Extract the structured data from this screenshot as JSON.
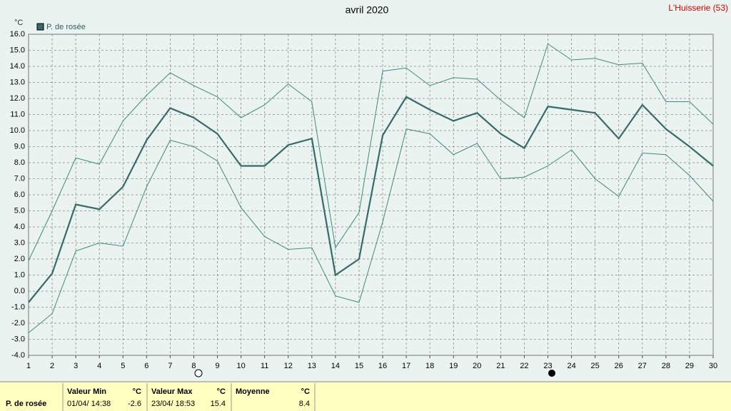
{
  "chart_data": {
    "type": "line",
    "title": "avril 2020",
    "location": "L'Huisserie (53)",
    "unit": "°C",
    "x": [
      1,
      2,
      3,
      4,
      5,
      6,
      7,
      8,
      9,
      10,
      11,
      12,
      13,
      14,
      15,
      16,
      17,
      18,
      19,
      20,
      21,
      22,
      23,
      24,
      25,
      26,
      27,
      28,
      29,
      30
    ],
    "xlim": [
      1,
      30
    ],
    "xticks": [
      1,
      2,
      3,
      4,
      5,
      6,
      7,
      8,
      9,
      10,
      11,
      12,
      13,
      14,
      15,
      16,
      17,
      18,
      19,
      20,
      21,
      22,
      23,
      24,
      25,
      26,
      27,
      28,
      29,
      30
    ],
    "ylim": [
      -4,
      16
    ],
    "yticks": [
      {
        "value": -4,
        "label": "-4.0"
      },
      {
        "value": -3,
        "label": "-3.0"
      },
      {
        "value": -2,
        "label": "-2.0"
      },
      {
        "value": -1,
        "label": "-1.0"
      },
      {
        "value": 0,
        "label": "0.0"
      },
      {
        "value": 1,
        "label": "1.0"
      },
      {
        "value": 2,
        "label": "2.0"
      },
      {
        "value": 3,
        "label": "3.0"
      },
      {
        "value": 4,
        "label": "4.0"
      },
      {
        "value": 5,
        "label": "5.0"
      },
      {
        "value": 6,
        "label": "6.0"
      },
      {
        "value": 7,
        "label": "7.0"
      },
      {
        "value": 8,
        "label": "8.0"
      },
      {
        "value": 9,
        "label": "9.0"
      },
      {
        "value": 10,
        "label": "10.0"
      },
      {
        "value": 11,
        "label": "11.0"
      },
      {
        "value": 12,
        "label": "12.0"
      },
      {
        "value": 13,
        "label": "13.0"
      },
      {
        "value": 14,
        "label": "14.0"
      },
      {
        "value": 15,
        "label": "15.0"
      },
      {
        "value": 16,
        "label": "16.0"
      }
    ],
    "grid": true,
    "series": [
      {
        "name": "P. de rosée",
        "color": "#356b6b",
        "line_width": 2.2,
        "values": [
          -0.7,
          1.1,
          5.4,
          5.1,
          6.5,
          9.4,
          11.4,
          10.8,
          9.8,
          7.8,
          7.8,
          9.1,
          9.5,
          1.0,
          2.0,
          9.7,
          12.1,
          11.3,
          10.6,
          11.1,
          9.8,
          8.9,
          11.5,
          11.3,
          11.1,
          9.5,
          11.6,
          10.1,
          9.0,
          7.8
        ]
      },
      {
        "color": "#3f8a84",
        "line_width": 1,
        "values": [
          1.9,
          5.0,
          8.3,
          7.9,
          10.6,
          12.2,
          13.6,
          12.8,
          12.1,
          10.8,
          11.6,
          12.9,
          11.8,
          2.7,
          4.9,
          13.7,
          13.9,
          12.8,
          13.3,
          13.2,
          11.9,
          10.8,
          15.4,
          14.4,
          14.5,
          14.1,
          14.2,
          11.8,
          11.8,
          10.4
        ]
      },
      {
        "color": "#3f8a84",
        "line_width": 1,
        "values": [
          -2.6,
          -1.4,
          2.5,
          3.0,
          2.8,
          6.5,
          9.4,
          9.0,
          8.1,
          5.2,
          3.4,
          2.6,
          2.7,
          -0.3,
          -0.7,
          4.3,
          10.1,
          9.8,
          8.5,
          9.2,
          7.0,
          7.1,
          7.8,
          8.8,
          7.0,
          5.9,
          8.6,
          8.5,
          7.2,
          5.6
        ]
      }
    ]
  },
  "summary": {
    "label": "P. de rosée",
    "columns": [
      {
        "title": "Valeur Min",
        "unit": "°C",
        "when": "01/04/ 14:38",
        "value": -2.6
      },
      {
        "title": "Valeur Max",
        "unit": "°C",
        "when": "23/04/ 18:53",
        "value": 15.4
      },
      {
        "title": "Moyenne",
        "unit": "°C",
        "when": "",
        "value": 8.4
      }
    ]
  }
}
